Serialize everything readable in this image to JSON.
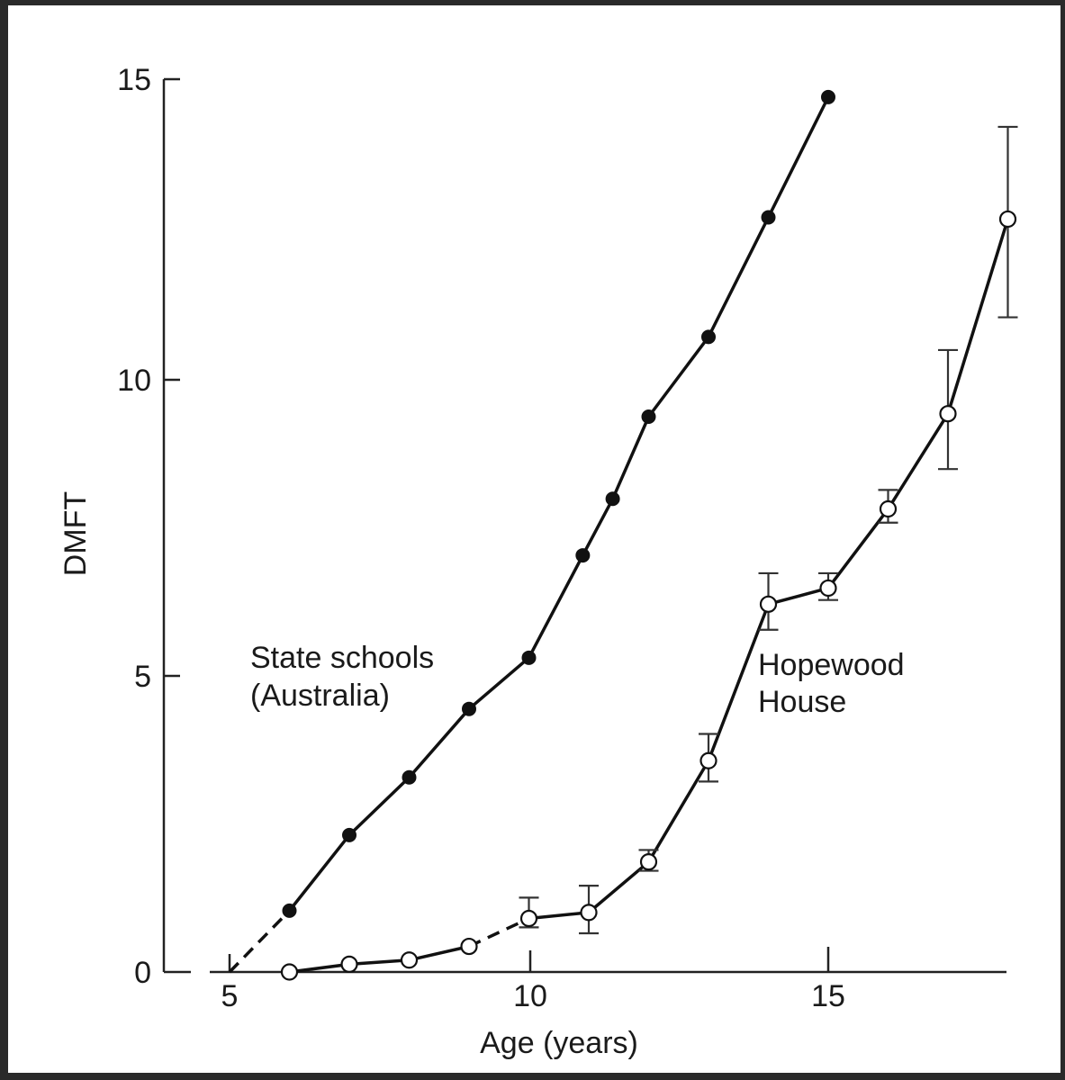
{
  "chart_data": {
    "type": "line",
    "title": "",
    "xlabel": "Age (years)",
    "ylabel": "DMFT",
    "xlim": [
      4.5,
      18.3
    ],
    "ylim": [
      0,
      15
    ],
    "x_ticks": [
      5,
      10,
      15
    ],
    "y_ticks": [
      0,
      5,
      10,
      15
    ],
    "x_tick_labels": [
      "5",
      "10",
      "15"
    ],
    "y_tick_labels": [
      "0",
      "5",
      "10",
      "15"
    ],
    "grid": false,
    "legend": "none (inline annotations)",
    "series": [
      {
        "name": "State schools (Australia)",
        "label_lines": [
          "State schools",
          "(Australia)"
        ],
        "marker": "filled-circle",
        "color": "#111111",
        "dashed_segment": [
          [
            5,
            0
          ],
          [
            6,
            1.03
          ]
        ],
        "x": [
          6,
          7,
          8,
          9,
          10,
          10.9,
          11.4,
          12,
          13,
          14,
          15
        ],
        "values": [
          1.03,
          2.3,
          3.27,
          4.42,
          5.28,
          7.0,
          7.95,
          9.33,
          10.67,
          12.68,
          14.7
        ]
      },
      {
        "name": "Hopewood House",
        "label_lines": [
          "Hopewood",
          "House"
        ],
        "marker": "open-circle",
        "color": "#111111",
        "dashed_segment": [
          [
            9,
            0.43
          ],
          [
            10,
            0.9
          ]
        ],
        "x": [
          6,
          7,
          8,
          9,
          10,
          11,
          12,
          13,
          14,
          15,
          16,
          17,
          18
        ],
        "values": [
          0,
          0.13,
          0.2,
          0.43,
          0.9,
          1.0,
          1.85,
          3.55,
          6.18,
          6.45,
          7.78,
          9.38,
          12.65
        ],
        "error_low": [
          null,
          null,
          null,
          null,
          0.75,
          0.65,
          1.7,
          3.2,
          5.75,
          6.25,
          7.55,
          8.45,
          11.0
        ],
        "error_high": [
          null,
          null,
          null,
          null,
          1.25,
          1.45,
          2.05,
          4.0,
          6.7,
          6.7,
          8.1,
          10.45,
          14.2
        ]
      }
    ]
  },
  "axes": {
    "x_title": "Age (years)",
    "y_title": "DMFT",
    "x_ticks": [
      "5",
      "10",
      "15"
    ],
    "y_ticks": [
      "0",
      "5",
      "10",
      "15"
    ]
  },
  "annotations": {
    "state_line1": "State schools",
    "state_line2": "(Australia)",
    "hopewood_line1": "Hopewood",
    "hopewood_line2": "House"
  }
}
